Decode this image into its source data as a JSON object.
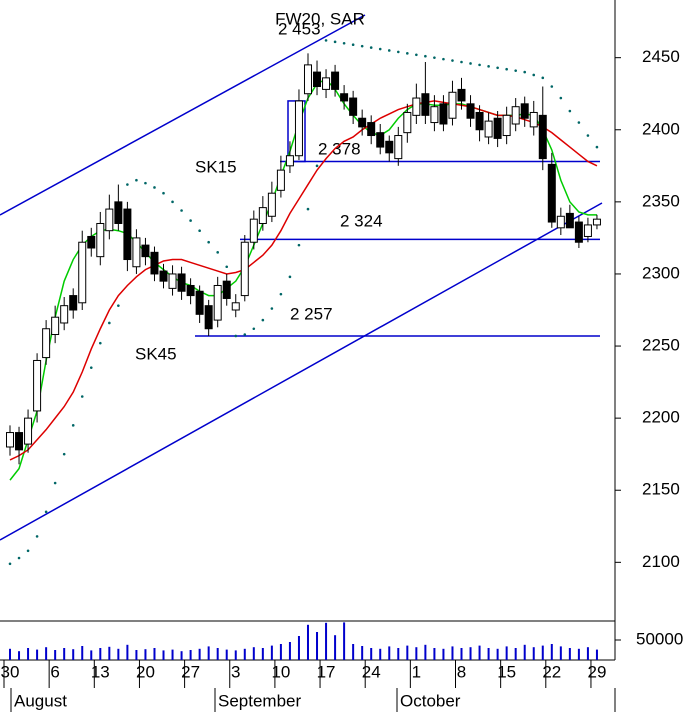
{
  "chart_data": {
    "type": "candlestick",
    "title": "FW20, SAR",
    "categories": [
      "30",
      null,
      null,
      null,
      null,
      "6",
      null,
      null,
      null,
      null,
      "13",
      null,
      null,
      null,
      null,
      "20",
      null,
      null,
      null,
      null,
      "27",
      null,
      null,
      null,
      null,
      "3",
      null,
      null,
      null,
      null,
      "10",
      null,
      null,
      null,
      null,
      "17",
      null,
      null,
      null,
      null,
      "24",
      null,
      null,
      null,
      null,
      "1",
      null,
      null,
      null,
      null,
      "8",
      null,
      null,
      null,
      null,
      "15",
      null,
      null,
      null,
      null,
      "22",
      null,
      null,
      null,
      null,
      "29"
    ],
    "months": [
      "August",
      "September",
      "October"
    ],
    "open": [
      2180,
      2190,
      2182,
      2205,
      2242,
      2258,
      2266,
      2285,
      2280,
      2326,
      2312,
      2330,
      2350,
      2345,
      2305,
      2320,
      2315,
      2302,
      2290,
      2300,
      2292,
      2288,
      2278,
      2268,
      2295,
      2275,
      2285,
      2322,
      2335,
      2340,
      2358,
      2375,
      2382,
      2425,
      2440,
      2428,
      2440,
      2425,
      2422,
      2408,
      2405,
      2398,
      2392,
      2380,
      2398,
      2410,
      2425,
      2405,
      2418,
      2408,
      2428,
      2418,
      2412,
      2395,
      2408,
      2396,
      2404,
      2418,
      2402,
      2410,
      2376,
      2332,
      2342,
      2336,
      2326,
      2334
    ],
    "high": [
      2195,
      2194,
      2206,
      2245,
      2268,
      2278,
      2284,
      2290,
      2330,
      2332,
      2343,
      2355,
      2362,
      2350,
      2331,
      2325,
      2319,
      2307,
      2306,
      2305,
      2297,
      2292,
      2282,
      2298,
      2300,
      2286,
      2327,
      2344,
      2354,
      2364,
      2382,
      2392,
      2428,
      2453,
      2448,
      2442,
      2445,
      2431,
      2427,
      2414,
      2410,
      2404,
      2396,
      2402,
      2418,
      2432,
      2447,
      2424,
      2424,
      2434,
      2436,
      2424,
      2417,
      2412,
      2413,
      2416,
      2422,
      2423,
      2420,
      2430,
      2384,
      2346,
      2348,
      2340,
      2339,
      2341
    ],
    "low": [
      2174,
      2168,
      2176,
      2197,
      2237,
      2252,
      2261,
      2269,
      2275,
      2312,
      2306,
      2324,
      2330,
      2302,
      2300,
      2306,
      2295,
      2290,
      2285,
      2282,
      2279,
      2266,
      2257,
      2263,
      2278,
      2270,
      2281,
      2317,
      2330,
      2336,
      2353,
      2370,
      2379,
      2420,
      2424,
      2422,
      2423,
      2414,
      2404,
      2396,
      2390,
      2383,
      2378,
      2375,
      2391,
      2404,
      2404,
      2399,
      2399,
      2403,
      2414,
      2402,
      2392,
      2390,
      2388,
      2390,
      2399,
      2402,
      2396,
      2372,
      2332,
      2327,
      2332,
      2318,
      2322,
      2331
    ],
    "close": [
      2190,
      2178,
      2200,
      2240,
      2262,
      2270,
      2278,
      2275,
      2322,
      2318,
      2335,
      2345,
      2335,
      2310,
      2325,
      2312,
      2300,
      2295,
      2300,
      2288,
      2285,
      2272,
      2262,
      2292,
      2283,
      2280,
      2322,
      2338,
      2346,
      2356,
      2372,
      2382,
      2420,
      2445,
      2430,
      2436,
      2428,
      2420,
      2410,
      2402,
      2396,
      2388,
      2384,
      2396,
      2412,
      2422,
      2410,
      2416,
      2404,
      2426,
      2420,
      2408,
      2400,
      2406,
      2394,
      2410,
      2416,
      2408,
      2412,
      2380,
      2336,
      2340,
      2332,
      2322,
      2334,
      2338
    ],
    "volume": [
      28000,
      22000,
      30000,
      26000,
      32000,
      25000,
      30000,
      27000,
      35000,
      24000,
      30000,
      33000,
      28000,
      38000,
      25000,
      27000,
      30000,
      24000,
      26000,
      22000,
      25000,
      28000,
      34000,
      30000,
      26000,
      24000,
      28000,
      32000,
      30000,
      36000,
      40000,
      45000,
      60000,
      88000,
      70000,
      93000,
      62000,
      94000,
      40000,
      35000,
      30000,
      28000,
      34000,
      30000,
      36000,
      32000,
      38000,
      30000,
      28000,
      34000,
      30000,
      32000,
      36000,
      30000,
      28000,
      34000,
      30000,
      38000,
      32000,
      36000,
      40000,
      34000,
      30000,
      28000,
      32000,
      26000
    ],
    "series": [
      {
        "name": "SK15",
        "color": "#00cc00",
        "values": [
          2157,
          2165,
          2185,
          2205,
          2240,
          2270,
          2295,
          2310,
          2320,
          2326,
          2330,
          2331,
          2330,
          2328,
          2322,
          2315,
          2308,
          2303,
          2298,
          2294,
          2292,
          2288,
          2285,
          2285,
          2290,
          2295,
          2305,
          2320,
          2335,
          2350,
          2368,
          2385,
          2405,
          2422,
          2432,
          2435,
          2428,
          2418,
          2410,
          2403,
          2398,
          2396,
          2400,
          2408,
          2414,
          2418,
          2418,
          2417,
          2417,
          2418,
          2418,
          2416,
          2414,
          2412,
          2410,
          2410,
          2410,
          2411,
          2410,
          2400,
          2386,
          2365,
          2350,
          2343,
          2341,
          2341
        ]
      },
      {
        "name": "SK45",
        "color": "#dd0000",
        "values": [
          2171,
          2174,
          2178,
          2185,
          2192,
          2200,
          2208,
          2218,
          2232,
          2248,
          2262,
          2275,
          2285,
          2292,
          2298,
          2303,
          2306,
          2309,
          2310,
          2310,
          2308,
          2306,
          2304,
          2302,
          2300,
          2301,
          2303,
          2308,
          2313,
          2320,
          2330,
          2342,
          2352,
          2362,
          2372,
          2380,
          2387,
          2392,
          2395,
          2400,
          2404,
          2408,
          2411,
          2414,
          2416,
          2418,
          2419,
          2420,
          2419,
          2418,
          2417,
          2416,
          2414,
          2412,
          2410,
          2410,
          2409,
          2407,
          2405,
          2402,
          2398,
          2393,
          2388,
          2383,
          2378,
          2375
        ]
      }
    ],
    "sar": {
      "color": "#006666",
      "values": [
        2099,
        2103,
        2108,
        2118,
        2135,
        2155,
        2175,
        2195,
        2215,
        2235,
        2252,
        2266,
        2278,
        2362,
        2365,
        2363,
        2360,
        2356,
        2350,
        2344,
        2337,
        2330,
        2322,
        2315,
        2305,
        2257,
        2258,
        2262,
        2268,
        2276,
        2286,
        2298,
        2320,
        2345,
        2375,
        2462,
        2461,
        2460,
        2459,
        2458,
        2457,
        2456,
        2455,
        2454,
        2453,
        2452,
        2451,
        2450,
        2449,
        2448,
        2447,
        2446,
        2445,
        2444,
        2443,
        2442,
        2441,
        2440,
        2438,
        2436,
        2430,
        2422,
        2413,
        2405,
        2396,
        2388
      ]
    },
    "levels": [
      {
        "value": 2453,
        "label": "2 453"
      },
      {
        "value": 2378,
        "label": "2 378"
      },
      {
        "value": 2324,
        "label": "2 324"
      },
      {
        "value": 2257,
        "label": "2 257"
      }
    ],
    "level_color": "#0000cc",
    "ylim": [
      2060,
      2490
    ],
    "yticks": [
      2100,
      2150,
      2200,
      2250,
      2300,
      2350,
      2400,
      2450
    ],
    "volume_ylim": [
      0,
      95000
    ],
    "volume_yticks": [
      50000
    ]
  }
}
